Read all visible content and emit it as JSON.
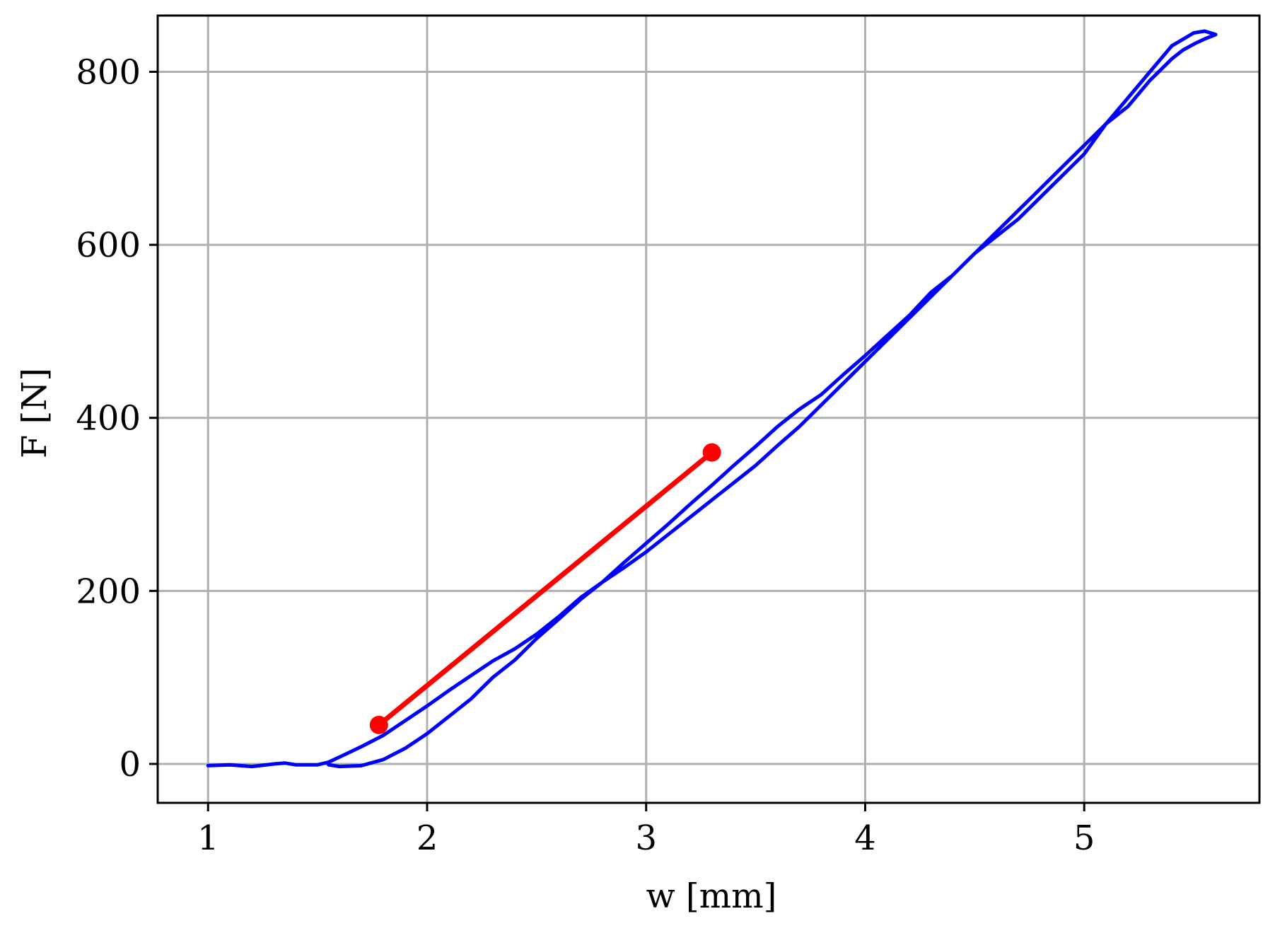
{
  "chart_data": {
    "type": "line",
    "title": "",
    "xlabel": "w [mm]",
    "ylabel": "F [N]",
    "xlim": [
      0.77,
      5.8
    ],
    "ylim": [
      -45,
      865
    ],
    "grid": true,
    "x_ticks": [
      1,
      2,
      3,
      4,
      5
    ],
    "x_tick_labels": [
      "1",
      "2",
      "3",
      "4",
      "5"
    ],
    "y_ticks": [
      0,
      200,
      400,
      600,
      800
    ],
    "y_tick_labels": [
      "0",
      "200",
      "400",
      "600",
      "800"
    ],
    "colors": {
      "loop": "#0000ff",
      "fit": "#ff0000",
      "grid": "#b0b0b0",
      "axes": "#000000"
    },
    "series": [
      {
        "color": "#0000ff",
        "style": "line",
        "x": [
          1.0,
          1.1,
          1.2,
          1.3,
          1.35,
          1.4,
          1.5,
          1.55,
          1.6,
          1.7,
          1.8,
          1.9,
          2.0,
          2.1,
          2.2,
          2.3,
          2.4,
          2.5,
          2.6,
          2.7,
          2.8,
          2.9,
          3.0,
          3.1,
          3.2,
          3.3,
          3.4,
          3.5,
          3.6,
          3.7,
          3.8,
          3.9,
          4.0,
          4.1,
          4.2,
          4.3,
          4.4,
          4.5,
          4.6,
          4.7,
          4.8,
          4.9,
          5.0,
          5.1,
          5.2,
          5.3,
          5.4,
          5.5,
          5.55,
          5.6,
          5.55,
          5.5,
          5.45,
          5.4,
          5.3,
          5.2,
          5.1,
          5.0,
          4.9,
          4.8,
          4.7,
          4.6,
          4.5,
          4.4,
          4.3,
          4.2,
          4.1,
          4.0,
          3.9,
          3.8,
          3.7,
          3.6,
          3.5,
          3.4,
          3.3,
          3.2,
          3.1,
          3.0,
          2.9,
          2.8,
          2.7,
          2.6,
          2.5,
          2.4,
          2.3,
          2.2,
          2.1,
          2.0,
          1.9,
          1.8,
          1.7,
          1.6,
          1.55
        ],
        "y": [
          -2,
          -1,
          -3,
          0,
          1,
          -1,
          -1,
          2,
          8,
          20,
          33,
          50,
          67,
          85,
          102,
          119,
          133,
          150,
          170,
          192,
          210,
          227,
          245,
          265,
          285,
          305,
          325,
          345,
          368,
          390,
          415,
          440,
          465,
          490,
          515,
          540,
          565,
          590,
          615,
          640,
          665,
          690,
          715,
          740,
          770,
          800,
          830,
          845,
          847,
          843,
          838,
          832,
          825,
          815,
          790,
          760,
          740,
          705,
          680,
          655,
          630,
          610,
          590,
          565,
          545,
          518,
          495,
          472,
          450,
          427,
          410,
          390,
          367,
          345,
          322,
          300,
          277,
          255,
          233,
          210,
          190,
          167,
          145,
          120,
          100,
          75,
          55,
          35,
          18,
          5,
          -2,
          -3,
          -1
        ]
      },
      {
        "color": "#ff0000",
        "style": "line-with-end-markers",
        "x": [
          1.78,
          3.3
        ],
        "y": [
          45,
          360
        ]
      }
    ]
  }
}
